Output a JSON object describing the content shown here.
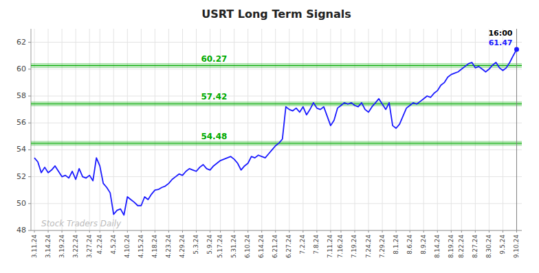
{
  "chart_data": {
    "type": "line",
    "title": "USRT Long Term Signals",
    "color": "#1a1aff",
    "grid": true,
    "ylim": [
      48,
      63
    ],
    "yticks": [
      48,
      50,
      52,
      54,
      56,
      58,
      60,
      62
    ],
    "categories": [
      "3.11.24",
      null,
      null,
      null,
      "3.14.24",
      null,
      null,
      null,
      "3.19.24",
      null,
      null,
      null,
      "3.22.24",
      null,
      null,
      null,
      "3.27.24",
      null,
      null,
      "4.2.24",
      null,
      null,
      null,
      "4.5.24",
      null,
      null,
      null,
      "4.10.24",
      null,
      null,
      null,
      "4.15.24",
      null,
      null,
      null,
      "4.18.24",
      null,
      null,
      null,
      "4.23.24",
      null,
      null,
      null,
      "4.29.24",
      null,
      null,
      null,
      "5.3.24",
      null,
      null,
      null,
      "5.9.24",
      null,
      null,
      "5.17.24",
      null,
      null,
      null,
      "5.31.24",
      null,
      null,
      null,
      "6.10.24",
      null,
      null,
      null,
      "6.14.24",
      null,
      null,
      null,
      "6.21.24",
      null,
      null,
      null,
      "6.27.24",
      null,
      null,
      null,
      "7.2.24",
      null,
      null,
      null,
      "7.8.24",
      null,
      null,
      null,
      "7.11.24",
      null,
      null,
      "7.16.24",
      null,
      null,
      null,
      "7.19.24",
      null,
      null,
      null,
      "7.24.24",
      null,
      null,
      null,
      "7.29.24",
      null,
      null,
      null,
      "8.1.24",
      null,
      null,
      null,
      "8.6.24",
      null,
      null,
      null,
      "8.9.24",
      null,
      null,
      null,
      "8.14.24",
      null,
      null,
      null,
      "8.19.24",
      null,
      null,
      "8.22.24",
      null,
      null,
      null,
      "8.27.24",
      null,
      null,
      null,
      "8.30.24",
      null,
      null,
      null,
      "9.5.24",
      null,
      null,
      null,
      "9.10.24"
    ],
    "values": [
      53.4,
      53.1,
      52.3,
      52.7,
      52.3,
      52.5,
      52.8,
      52.4,
      52.0,
      52.1,
      51.9,
      52.4,
      51.8,
      52.6,
      52.0,
      51.9,
      52.1,
      51.7,
      53.4,
      52.8,
      51.5,
      51.2,
      50.8,
      49.2,
      49.5,
      49.6,
      49.15,
      50.5,
      50.3,
      50.1,
      49.85,
      49.85,
      50.5,
      50.3,
      50.7,
      51.0,
      51.05,
      51.2,
      51.3,
      51.5,
      51.8,
      52.0,
      52.2,
      52.1,
      52.4,
      52.6,
      52.5,
      52.4,
      52.7,
      52.9,
      52.6,
      52.5,
      52.8,
      53.0,
      53.2,
      53.3,
      53.4,
      53.5,
      53.3,
      53.0,
      52.5,
      52.8,
      53.0,
      53.5,
      53.4,
      53.6,
      53.5,
      53.4,
      53.7,
      54.0,
      54.3,
      54.5,
      54.8,
      57.2,
      57.0,
      56.9,
      57.1,
      56.8,
      57.2,
      56.6,
      57.0,
      57.5,
      57.1,
      57.0,
      57.2,
      56.5,
      55.8,
      56.2,
      57.1,
      57.3,
      57.5,
      57.4,
      57.5,
      57.3,
      57.2,
      57.5,
      57.0,
      56.8,
      57.2,
      57.5,
      57.8,
      57.4,
      57.0,
      57.5,
      55.8,
      55.6,
      55.9,
      56.5,
      57.1,
      57.3,
      57.5,
      57.4,
      57.6,
      57.8,
      58.0,
      57.9,
      58.2,
      58.4,
      58.8,
      59.0,
      59.4,
      59.6,
      59.7,
      59.8,
      60.0,
      60.2,
      60.4,
      60.5,
      60.1,
      60.2,
      60.0,
      59.8,
      60.0,
      60.3,
      60.5,
      60.1,
      59.9,
      60.1,
      60.5,
      61.0,
      61.47
    ],
    "reference_lines": [
      {
        "value": 60.27,
        "label": "60.27",
        "color": "#00aa00"
      },
      {
        "value": 57.42,
        "label": "57.42",
        "color": "#00aa00"
      },
      {
        "value": 54.48,
        "label": "54.48",
        "color": "#00aa00"
      }
    ],
    "annotations": [
      {
        "text": "61.47",
        "color": "#1a1aff"
      },
      {
        "text": "16:00",
        "color": "#000000"
      }
    ],
    "watermark": {
      "text": "Stock Traders Daily",
      "color": "#bbbbbb"
    }
  }
}
